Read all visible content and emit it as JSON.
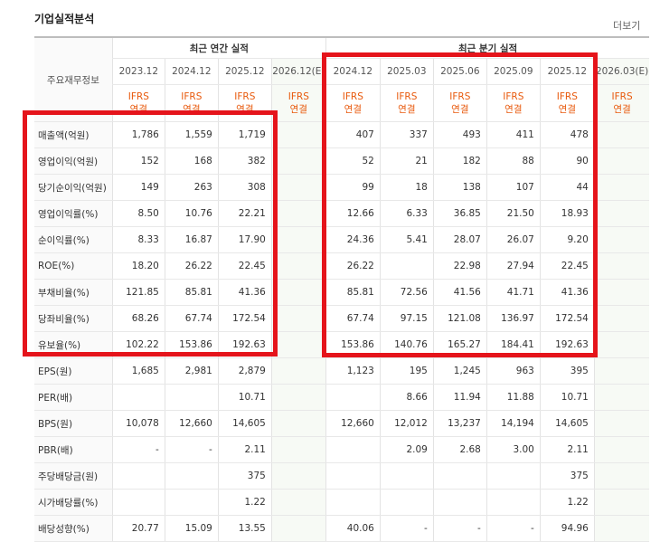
{
  "header": {
    "title": "기업실적분석",
    "more": "더보기"
  },
  "table": {
    "corner": "주요재무정보",
    "groups": [
      "최근 연간 실적",
      "최근 분기 실적"
    ],
    "periods": [
      "2023.12",
      "2024.12",
      "2025.12",
      "2026.12(E)",
      "2024.12",
      "2025.03",
      "2025.06",
      "2025.09",
      "2025.12",
      "2026.03(E)"
    ],
    "standards": [
      {
        "line1": "IFRS",
        "line2": "연결"
      },
      {
        "line1": "IFRS",
        "line2": "연결"
      },
      {
        "line1": "IFRS",
        "line2": "연결"
      },
      {
        "line1": "IFRS",
        "line2": "연결"
      },
      {
        "line1": "IFRS",
        "line2": "연결"
      },
      {
        "line1": "IFRS",
        "line2": "연결"
      },
      {
        "line1": "IFRS",
        "line2": "연결"
      },
      {
        "line1": "IFRS",
        "line2": "연결"
      },
      {
        "line1": "IFRS",
        "line2": "연결"
      },
      {
        "line1": "IFRS",
        "line2": "연결"
      }
    ],
    "rows": [
      {
        "label": "매출액(억원)",
        "values": [
          "1,786",
          "1,559",
          "1,719",
          null,
          "407",
          "337",
          "493",
          "411",
          "478",
          null
        ]
      },
      {
        "label": "영업이익(억원)",
        "values": [
          "152",
          "168",
          "382",
          null,
          "52",
          "21",
          "182",
          "88",
          "90",
          null
        ]
      },
      {
        "label": "당기순이익(억원)",
        "values": [
          "149",
          "263",
          "308",
          null,
          "99",
          "18",
          "138",
          "107",
          "44",
          null
        ]
      },
      {
        "label": "영업이익률(%)",
        "values": [
          "8.50",
          "10.76",
          "22.21",
          null,
          "12.66",
          "6.33",
          "36.85",
          "21.50",
          "18.93",
          null
        ]
      },
      {
        "label": "순이익률(%)",
        "values": [
          "8.33",
          "16.87",
          "17.90",
          null,
          "24.36",
          "5.41",
          "28.07",
          "26.07",
          "9.20",
          null
        ]
      },
      {
        "label": "ROE(%)",
        "values": [
          "18.20",
          "26.22",
          "22.45",
          null,
          "26.22",
          null,
          "22.98",
          "27.94",
          "22.45",
          null
        ]
      },
      {
        "label": "부채비율(%)",
        "values": [
          "121.85",
          "85.81",
          "41.36",
          null,
          "85.81",
          "72.56",
          "41.56",
          "41.71",
          "41.36",
          null
        ]
      },
      {
        "label": "당좌비율(%)",
        "values": [
          "68.26",
          "67.74",
          "172.54",
          null,
          "67.74",
          "97.15",
          "121.08",
          "136.97",
          "172.54",
          null
        ]
      },
      {
        "label": "유보율(%)",
        "values": [
          "102.22",
          "153.86",
          "192.63",
          null,
          "153.86",
          "140.76",
          "165.27",
          "184.41",
          "192.63",
          null
        ]
      },
      {
        "label": "EPS(원)",
        "values": [
          "1,685",
          "2,981",
          "2,879",
          null,
          "1,123",
          "195",
          "1,245",
          "963",
          "395",
          null
        ]
      },
      {
        "label": "PER(배)",
        "values": [
          null,
          null,
          "10.71",
          null,
          null,
          "8.66",
          "11.94",
          "11.88",
          "10.71",
          null
        ]
      },
      {
        "label": "BPS(원)",
        "values": [
          "10,078",
          "12,660",
          "14,605",
          null,
          "12,660",
          "12,012",
          "13,237",
          "14,194",
          "14,605",
          null
        ]
      },
      {
        "label": "PBR(배)",
        "values": [
          "-",
          "-",
          "2.11",
          null,
          null,
          "2.09",
          "2.68",
          "3.00",
          "2.11",
          null
        ]
      },
      {
        "label": "주당배당금(원)",
        "values": [
          null,
          null,
          "375",
          null,
          null,
          null,
          null,
          null,
          "375",
          null
        ]
      },
      {
        "label": "시가배당률(%)",
        "values": [
          null,
          null,
          "1.22",
          null,
          null,
          null,
          null,
          null,
          "1.22",
          null
        ]
      },
      {
        "label": "배당성향(%)",
        "values": [
          "20.77",
          "15.09",
          "13.55",
          null,
          "40.06",
          "-",
          "-",
          "-",
          "94.96",
          null
        ]
      }
    ]
  }
}
